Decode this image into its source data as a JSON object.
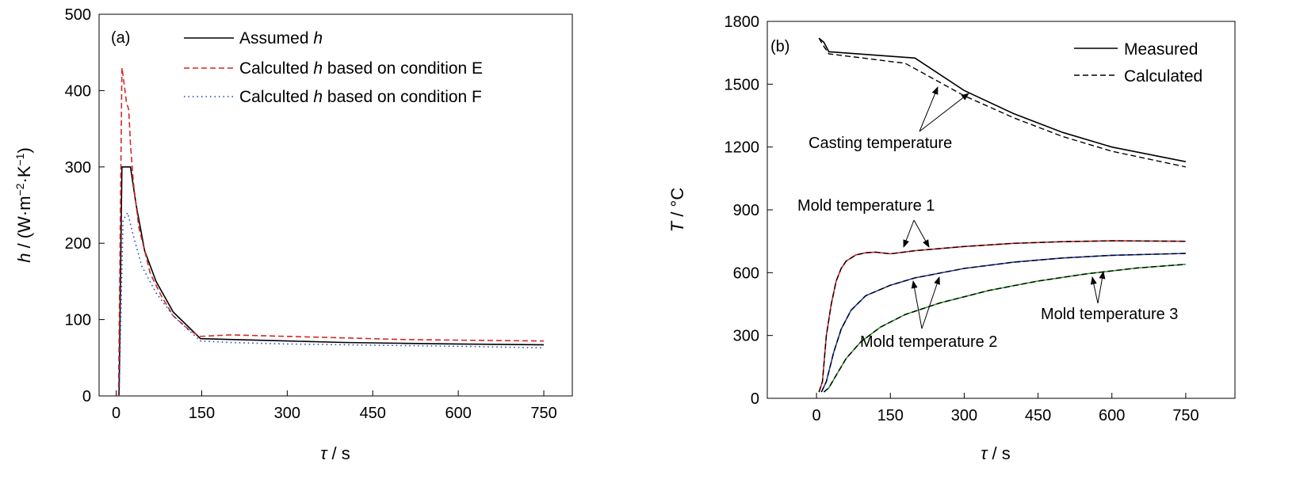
{
  "chart_data": [
    {
      "type": "line",
      "panel_label": "(a)",
      "xlabel": {
        "symbol": "τ",
        "unit": " / s"
      },
      "ylabel": {
        "symbol": "h",
        "unit_prefix": " / (W·m",
        "exp1": "−2",
        "mid": "·K",
        "exp2": "−1",
        "unit_suffix": ")"
      },
      "xlim": [
        -30,
        800
      ],
      "ylim": [
        0,
        500
      ],
      "xticks": [
        0,
        150,
        300,
        450,
        600,
        750
      ],
      "yticks": [
        0,
        100,
        200,
        300,
        400,
        500
      ],
      "grid": false,
      "legend_position": "top-right",
      "series": [
        {
          "name_parts": [
            "Assumed ",
            "h",
            ""
          ],
          "color": "#000000",
          "dash": "solid",
          "x": [
            5,
            10,
            25,
            35,
            50,
            70,
            100,
            148,
            200,
            300,
            400,
            500,
            600,
            750
          ],
          "y": [
            0,
            300,
            300,
            250,
            190,
            150,
            110,
            75,
            74,
            72,
            70,
            69,
            68,
            67
          ]
        },
        {
          "name_parts": [
            "Calculted ",
            "h",
            " based on condition E"
          ],
          "color": "#d62728",
          "dash": "dashed",
          "x": [
            4,
            10,
            12,
            18,
            22,
            25,
            30,
            40,
            60,
            80,
            100,
            130,
            148,
            200,
            300,
            400,
            500,
            600,
            750
          ],
          "y": [
            0,
            430,
            420,
            385,
            375,
            330,
            280,
            220,
            160,
            130,
            105,
            85,
            78,
            80,
            78,
            76,
            74,
            73,
            72
          ]
        },
        {
          "name_parts": [
            "Calculted ",
            "h",
            " based on condition F"
          ],
          "color": "#1f3fbf",
          "dash": "dotted",
          "x": [
            5,
            12,
            20,
            30,
            45,
            70,
            100,
            148,
            200,
            300,
            400,
            500,
            600,
            750
          ],
          "y": [
            0,
            230,
            240,
            210,
            170,
            135,
            105,
            72,
            70,
            68,
            67,
            66,
            65,
            63
          ]
        }
      ]
    },
    {
      "type": "line",
      "panel_label": "(b)",
      "xlabel": {
        "symbol": "τ",
        "unit": " / s"
      },
      "ylabel": {
        "symbol": "T",
        "unit": " / °C"
      },
      "xlim": [
        -100,
        850
      ],
      "ylim": [
        0,
        1800
      ],
      "xticks": [
        0,
        150,
        300,
        450,
        600,
        750
      ],
      "yticks": [
        0,
        300,
        600,
        900,
        1200,
        1500,
        1800
      ],
      "grid": false,
      "legend_position": "top-right",
      "legend": [
        {
          "label": "Measured",
          "dash": "solid"
        },
        {
          "label": "Calculated",
          "dash": "dashed"
        }
      ],
      "groups": [
        {
          "name": "Casting temperature",
          "color": "#000000",
          "measured": {
            "x": [
              5,
              15,
              25,
              200,
              300,
              400,
              500,
              600,
              750
            ],
            "y": [
              1720,
              1700,
              1655,
              1625,
              1470,
              1360,
              1270,
              1200,
              1130
            ]
          },
          "calculated": {
            "x": [
              5,
              15,
              25,
              180,
              300,
              400,
              500,
              600,
              750
            ],
            "y": [
              1720,
              1680,
              1645,
              1600,
              1445,
              1340,
              1250,
              1180,
              1105
            ]
          }
        },
        {
          "name": "Mold temperature 1",
          "color": "#d62728",
          "measured": {
            "x": [
              5,
              12,
              20,
              30,
              40,
              50,
              60,
              80,
              100,
              120,
              150,
              200,
              300,
              400,
              500,
              600,
              750
            ],
            "y": [
              30,
              80,
              300,
              450,
              560,
              620,
              655,
              685,
              695,
              698,
              690,
              705,
              725,
              740,
              748,
              752,
              750
            ]
          },
          "calculated": {
            "x": [
              5,
              12,
              20,
              30,
              40,
              50,
              60,
              80,
              100,
              120,
              150,
              200,
              300,
              400,
              500,
              600,
              750
            ],
            "y": [
              30,
              80,
              300,
              450,
              560,
              620,
              655,
              685,
              695,
              698,
              690,
              705,
              725,
              740,
              748,
              752,
              750
            ]
          }
        },
        {
          "name": "Mold temperature 2",
          "color": "#1f3fbf",
          "measured": {
            "x": [
              10,
              20,
              35,
              50,
              70,
              100,
              150,
              200,
              300,
              400,
              500,
              600,
              750
            ],
            "y": [
              30,
              80,
              220,
              330,
              420,
              490,
              540,
              575,
              620,
              650,
              670,
              683,
              692
            ]
          },
          "calculated": {
            "x": [
              10,
              20,
              35,
              50,
              70,
              100,
              150,
              200,
              300,
              400,
              500,
              600,
              750
            ],
            "y": [
              30,
              80,
              220,
              330,
              420,
              490,
              540,
              575,
              620,
              650,
              670,
              683,
              692
            ]
          }
        },
        {
          "name": "Mold temperature 3",
          "color": "#2ca02c",
          "measured": {
            "x": [
              15,
              25,
              40,
              60,
              90,
              130,
              180,
              250,
              350,
              450,
              550,
              650,
              750
            ],
            "y": [
              30,
              50,
              110,
              190,
              270,
              340,
              400,
              455,
              515,
              560,
              595,
              622,
              640
            ]
          },
          "calculated": {
            "x": [
              15,
              25,
              40,
              60,
              90,
              130,
              180,
              250,
              350,
              450,
              550,
              650,
              750
            ],
            "y": [
              30,
              50,
              110,
              190,
              270,
              340,
              400,
              455,
              515,
              560,
              595,
              622,
              640
            ]
          }
        }
      ]
    }
  ]
}
